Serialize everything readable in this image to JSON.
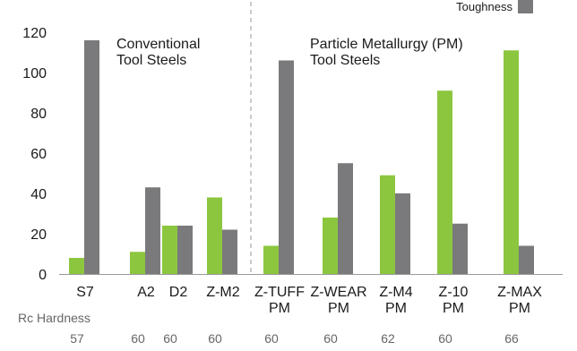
{
  "chart_data": {
    "type": "bar",
    "categories": [
      [
        "S7"
      ],
      [
        "A2"
      ],
      [
        "D2"
      ],
      [
        "Z-M2"
      ],
      [
        "Z-TUFF",
        "PM"
      ],
      [
        "Z-WEAR",
        "PM"
      ],
      [
        "Z-M4",
        "PM"
      ],
      [
        "Z-10",
        "PM"
      ],
      [
        "Z-MAX",
        "PM"
      ]
    ],
    "series": [
      {
        "name": "",
        "color": "#8cc63f",
        "values": [
          8,
          11,
          24,
          38,
          14,
          28,
          49,
          91,
          111
        ]
      },
      {
        "name": "Toughness",
        "color": "#7a7a7c",
        "values": [
          116,
          43,
          24,
          22,
          106,
          55,
          40,
          25,
          14
        ]
      }
    ],
    "ylim": [
      0,
      120
    ],
    "yticks": [
      0,
      20,
      40,
      60,
      80,
      100,
      120
    ],
    "group_labels": [
      {
        "lines": [
          "Conventional",
          "Tool Steels"
        ]
      },
      {
        "lines": [
          "Particle Metallurgy (PM)",
          "Tool Steels"
        ]
      }
    ],
    "divider_after_index": 3,
    "legend": {
      "text": "Toughness",
      "placement": "top-right"
    },
    "hardness": {
      "label": "Rc Hardness",
      "values": [
        "57",
        "60",
        "60",
        "60",
        "60",
        "60",
        "62",
        "60",
        "66"
      ]
    },
    "grid": false
  }
}
